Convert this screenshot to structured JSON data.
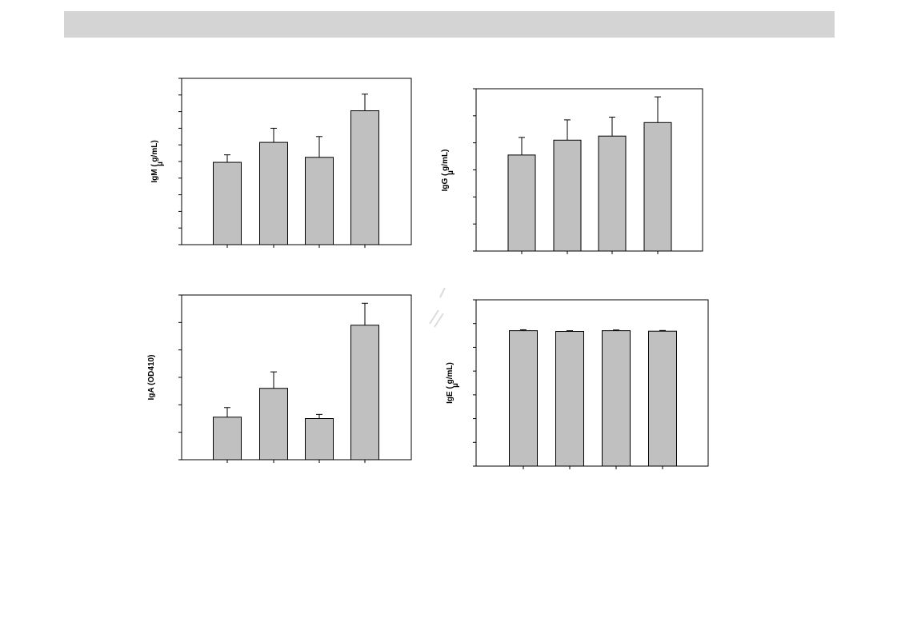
{
  "colors": {
    "bar_fill": "#c0c0c0",
    "bar_stroke": "#000000",
    "axis": "#000000",
    "banner": "#d4d4d4"
  },
  "chart_data": [
    {
      "type": "bar",
      "ylabel": "IgM (  g/mL)",
      "ylabel_mu": "µ",
      "ylim": [
        0,
        10
      ],
      "yticks": 10,
      "categories": [
        "",
        "",
        "",
        ""
      ],
      "values": [
        4.95,
        6.15,
        5.25,
        8.05
      ],
      "errors": [
        0.45,
        0.85,
        1.25,
        1.0
      ],
      "grid": false
    },
    {
      "type": "bar",
      "ylabel": "IgG (  g/mL)",
      "ylabel_mu": "µ",
      "ylim": [
        0,
        6
      ],
      "yticks": 6,
      "categories": [
        "",
        "",
        "",
        ""
      ],
      "values": [
        3.55,
        4.1,
        4.25,
        4.75
      ],
      "errors": [
        0.65,
        0.75,
        0.7,
        0.95
      ],
      "grid": false
    },
    {
      "type": "bar",
      "ylabel": "IgA (OD410)",
      "ylim": [
        0,
        6
      ],
      "yticks": 6,
      "categories": [
        "",
        "",
        "",
        ""
      ],
      "values": [
        1.55,
        2.6,
        1.5,
        4.9
      ],
      "errors": [
        0.35,
        0.6,
        0.15,
        0.8
      ],
      "grid": false
    },
    {
      "type": "bar",
      "ylabel": "IgE (  g/mL)",
      "ylabel_mu": "µ",
      "ylim": [
        0,
        7
      ],
      "yticks": 7,
      "categories": [
        "",
        "",
        "",
        ""
      ],
      "values": [
        5.7,
        5.67,
        5.7,
        5.68
      ],
      "errors": [
        0.04,
        0.03,
        0.03,
        0.03
      ],
      "grid": false
    }
  ]
}
